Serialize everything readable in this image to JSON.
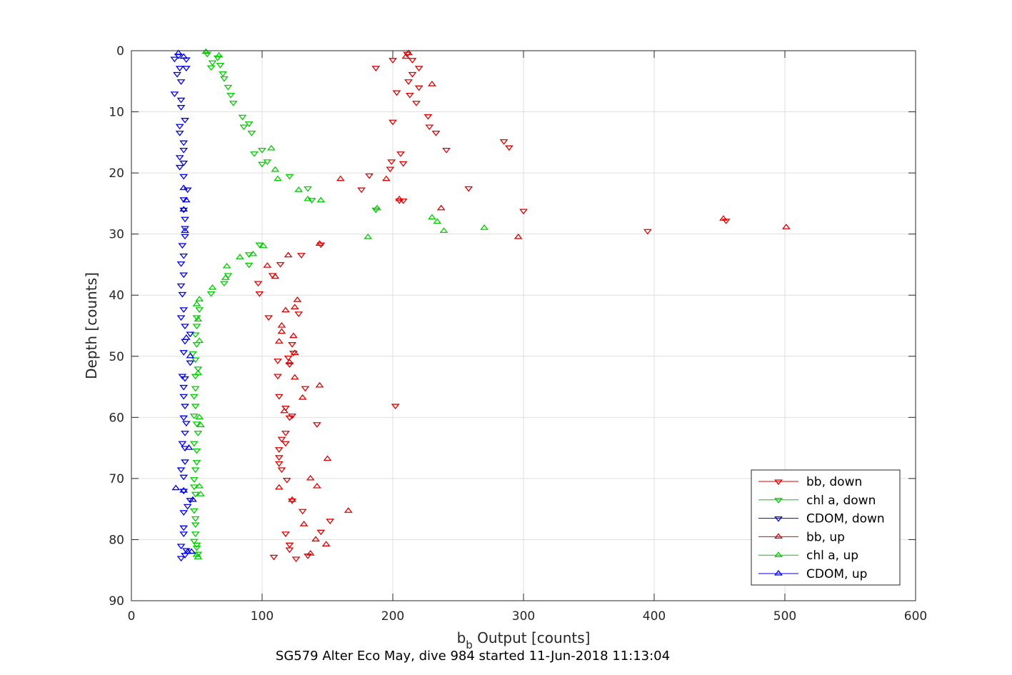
{
  "chart_data": {
    "type": "scatter",
    "xlabel_main": "b",
    "xlabel_sub": "b",
    "xlabel_rest": " Output [counts]",
    "ylabel": "Depth [counts]",
    "caption": "SG579 Alter Eco May, dive 984 started 11-Jun-2018 11:13:04",
    "xlim": [
      0,
      600
    ],
    "ylim": [
      0,
      90
    ],
    "y_reversed": true,
    "grid": true,
    "legend_position": "bottom-right",
    "x_ticks": [
      0,
      100,
      200,
      300,
      400,
      500,
      600
    ],
    "y_ticks": [
      0,
      10,
      20,
      30,
      40,
      50,
      60,
      70,
      80,
      90
    ],
    "series": [
      {
        "name": "bb, down",
        "color": "#dd0000",
        "marker": "triangle-down",
        "points": [
          [
            211,
            0.5
          ],
          [
            200,
            1.5
          ],
          [
            215,
            1.5
          ],
          [
            187,
            2.8
          ],
          [
            220,
            2.8
          ],
          [
            215,
            3.8
          ],
          [
            212,
            5
          ],
          [
            220,
            6
          ],
          [
            203,
            6.8
          ],
          [
            213,
            7.2
          ],
          [
            218,
            8.5
          ],
          [
            227,
            10.7
          ],
          [
            200,
            11.6
          ],
          [
            228,
            12.4
          ],
          [
            233,
            13.4
          ],
          [
            285,
            14.8
          ],
          [
            289,
            15.8
          ],
          [
            241,
            16.2
          ],
          [
            206,
            16.8
          ],
          [
            199,
            18.1
          ],
          [
            208,
            18.4
          ],
          [
            198,
            19.3
          ],
          [
            182,
            20.4
          ],
          [
            176,
            22.7
          ],
          [
            258,
            22.5
          ],
          [
            205,
            24.5
          ],
          [
            208,
            24.5
          ],
          [
            300,
            26.2
          ],
          [
            455,
            27.8
          ],
          [
            395,
            29.5
          ],
          [
            145,
            31.7
          ],
          [
            130,
            33.4
          ],
          [
            114,
            34.9
          ],
          [
            108,
            36.7
          ],
          [
            97,
            38
          ],
          [
            98,
            39.7
          ],
          [
            105,
            43.6
          ],
          [
            128,
            43
          ],
          [
            123,
            48
          ],
          [
            120,
            50.2
          ],
          [
            124,
            49.4
          ],
          [
            112,
            50.7
          ],
          [
            121,
            51.3
          ],
          [
            112,
            53.2
          ],
          [
            133,
            55.2
          ],
          [
            113,
            56.5
          ],
          [
            202,
            58.1
          ],
          [
            118,
            58.4
          ],
          [
            123,
            59.7
          ],
          [
            121,
            60
          ],
          [
            142,
            61.1
          ],
          [
            118,
            62.5
          ],
          [
            115,
            63.5
          ],
          [
            118,
            64.2
          ],
          [
            113,
            65.2
          ],
          [
            113,
            66.5
          ],
          [
            113,
            67.5
          ],
          [
            115,
            68.5
          ],
          [
            119,
            70.2
          ],
          [
            123,
            73.6
          ],
          [
            131,
            75.3
          ],
          [
            152,
            76.9
          ],
          [
            145,
            78.7
          ],
          [
            118,
            79
          ],
          [
            121,
            80.8
          ],
          [
            121,
            81.6
          ],
          [
            135,
            82.6
          ],
          [
            109,
            82.8
          ],
          [
            126,
            83.1
          ]
        ]
      },
      {
        "name": "chl a, down",
        "color": "#00cc00",
        "marker": "triangle-down",
        "points": [
          [
            58,
            0.5
          ],
          [
            66,
            1.1
          ],
          [
            62,
            1.9
          ],
          [
            68,
            2.3
          ],
          [
            61,
            2.7
          ],
          [
            70,
            3.7
          ],
          [
            71,
            4.5
          ],
          [
            74,
            5.9
          ],
          [
            76,
            7.2
          ],
          [
            78,
            8.5
          ],
          [
            85,
            10.8
          ],
          [
            90,
            11.9
          ],
          [
            86,
            12.4
          ],
          [
            92,
            13.4
          ],
          [
            100,
            16.2
          ],
          [
            94,
            16.8
          ],
          [
            104,
            18.1
          ],
          [
            100,
            18.5
          ],
          [
            121,
            20.5
          ],
          [
            135,
            22.5
          ],
          [
            138,
            24.4
          ],
          [
            187,
            26
          ],
          [
            98,
            31.7
          ],
          [
            90,
            33.3
          ],
          [
            90,
            35
          ],
          [
            74,
            36.7
          ],
          [
            71,
            38
          ],
          [
            61,
            39.7
          ],
          [
            52,
            42.3
          ],
          [
            50,
            43.6
          ],
          [
            50,
            45
          ],
          [
            49,
            46.4
          ],
          [
            50,
            48
          ],
          [
            47,
            49.5
          ],
          [
            49,
            50.5
          ],
          [
            51,
            52
          ],
          [
            49,
            53.2
          ],
          [
            49,
            55.2
          ],
          [
            48,
            56.5
          ],
          [
            49,
            58.1
          ],
          [
            48,
            59.7
          ],
          [
            50,
            61
          ],
          [
            51,
            62.5
          ],
          [
            48,
            64.2
          ],
          [
            50,
            65.4
          ],
          [
            50,
            67.3
          ],
          [
            49,
            68.5
          ],
          [
            48,
            70.1
          ],
          [
            48,
            71.3
          ],
          [
            49,
            72.5
          ],
          [
            48,
            75.2
          ],
          [
            49,
            76.5
          ],
          [
            49,
            77.5
          ],
          [
            49,
            79
          ],
          [
            48,
            80.2
          ],
          [
            50,
            80.8
          ],
          [
            50,
            81.3
          ],
          [
            51,
            82.3
          ]
        ]
      },
      {
        "name": "CDOM, down",
        "color": "#0000ee",
        "marker": "triangle-down",
        "points": [
          [
            36,
            0.8
          ],
          [
            33,
            1.3
          ],
          [
            42,
            1.4
          ],
          [
            42,
            2.8
          ],
          [
            37,
            2.8
          ],
          [
            35,
            3.8
          ],
          [
            38,
            5
          ],
          [
            33,
            7
          ],
          [
            38,
            8
          ],
          [
            38,
            9.2
          ],
          [
            41,
            11.3
          ],
          [
            37,
            12.3
          ],
          [
            37,
            13.4
          ],
          [
            40,
            15
          ],
          [
            40,
            16.2
          ],
          [
            37,
            17.4
          ],
          [
            40,
            18.3
          ],
          [
            37,
            19
          ],
          [
            40,
            20.5
          ],
          [
            43,
            22.7
          ],
          [
            40,
            24.3
          ],
          [
            40,
            26
          ],
          [
            41,
            27.5
          ],
          [
            41,
            29
          ],
          [
            41,
            30.3
          ],
          [
            39,
            31.8
          ],
          [
            40,
            33.5
          ],
          [
            38,
            34.8
          ],
          [
            40,
            36.6
          ],
          [
            38,
            38.4
          ],
          [
            39,
            39.8
          ],
          [
            40,
            42.3
          ],
          [
            38,
            43.6
          ],
          [
            41,
            45
          ],
          [
            45,
            46.3
          ],
          [
            41,
            47.5
          ],
          [
            40,
            49.3
          ],
          [
            45,
            51
          ],
          [
            39,
            53.2
          ],
          [
            41,
            53.6
          ],
          [
            40,
            55
          ],
          [
            40,
            56.5
          ],
          [
            41,
            58.1
          ],
          [
            40,
            60
          ],
          [
            42,
            60.9
          ],
          [
            41,
            62.5
          ],
          [
            39,
            64.2
          ],
          [
            41,
            65
          ],
          [
            41,
            67.2
          ],
          [
            38,
            68.5
          ],
          [
            40,
            69.7
          ],
          [
            40,
            72
          ],
          [
            45,
            73.5
          ],
          [
            43,
            74.5
          ],
          [
            40,
            75.5
          ],
          [
            40,
            78
          ],
          [
            40,
            79
          ],
          [
            38,
            81
          ],
          [
            42,
            81.7
          ],
          [
            38,
            83
          ],
          [
            41,
            82.5
          ]
        ]
      },
      {
        "name": "bb, up",
        "color": "#dd0000",
        "marker": "triangle-up",
        "points": [
          [
            212,
            0.4
          ],
          [
            210,
            1
          ],
          [
            230,
            5.5
          ],
          [
            195,
            21
          ],
          [
            205,
            24.3
          ],
          [
            237,
            25.8
          ],
          [
            453,
            27.5
          ],
          [
            501,
            28.9
          ],
          [
            296,
            30.5
          ],
          [
            160,
            21
          ],
          [
            144,
            31.6
          ],
          [
            110,
            37
          ],
          [
            104,
            35.2
          ],
          [
            120,
            33.5
          ],
          [
            127,
            40.8
          ],
          [
            125,
            42
          ],
          [
            118,
            42.5
          ],
          [
            115,
            45
          ],
          [
            115,
            46
          ],
          [
            124,
            46.7
          ],
          [
            113,
            47.6
          ],
          [
            125,
            49.5
          ],
          [
            121,
            51
          ],
          [
            125,
            53.5
          ],
          [
            144,
            54.8
          ],
          [
            131,
            56.8
          ],
          [
            117,
            59
          ],
          [
            150,
            66.8
          ],
          [
            137,
            70
          ],
          [
            142,
            71.3
          ],
          [
            113,
            71.5
          ],
          [
            123,
            73.5
          ],
          [
            166,
            75.3
          ],
          [
            132,
            77.5
          ],
          [
            141,
            80
          ],
          [
            149,
            80.8
          ],
          [
            137,
            82.3
          ]
        ]
      },
      {
        "name": "chl a, up",
        "color": "#00cc00",
        "marker": "triangle-up",
        "points": [
          [
            57,
            0.2
          ],
          [
            67,
            0.8
          ],
          [
            107,
            16
          ],
          [
            110,
            19.5
          ],
          [
            112,
            21
          ],
          [
            128,
            22.8
          ],
          [
            135,
            24.3
          ],
          [
            145,
            24.5
          ],
          [
            188,
            25.8
          ],
          [
            230,
            27.3
          ],
          [
            234,
            28
          ],
          [
            239,
            29.5
          ],
          [
            270,
            29
          ],
          [
            181,
            30.5
          ],
          [
            101,
            32
          ],
          [
            93,
            33.3
          ],
          [
            83,
            33.8
          ],
          [
            73,
            35.3
          ],
          [
            72,
            37.2
          ],
          [
            62,
            38.8
          ],
          [
            52,
            40.7
          ],
          [
            50,
            41.5
          ],
          [
            51,
            44
          ],
          [
            52,
            47.5
          ],
          [
            51,
            52.8
          ],
          [
            52,
            60
          ],
          [
            53,
            61.3
          ],
          [
            52,
            71.3
          ],
          [
            53,
            72.6
          ],
          [
            51,
            82.9
          ],
          [
            50,
            82.5
          ]
        ]
      },
      {
        "name": "CDOM, up",
        "color": "#0000ee",
        "marker": "triangle-up",
        "points": [
          [
            36,
            0.4
          ],
          [
            40,
            1
          ],
          [
            40,
            22.5
          ],
          [
            42,
            24.5
          ],
          [
            40,
            26
          ],
          [
            41,
            29.5
          ],
          [
            42,
            47
          ],
          [
            45,
            50
          ],
          [
            44,
            65
          ],
          [
            34,
            71.6
          ],
          [
            40,
            72
          ],
          [
            47,
            73.5
          ],
          [
            43,
            82
          ],
          [
            46,
            82
          ]
        ]
      }
    ]
  }
}
